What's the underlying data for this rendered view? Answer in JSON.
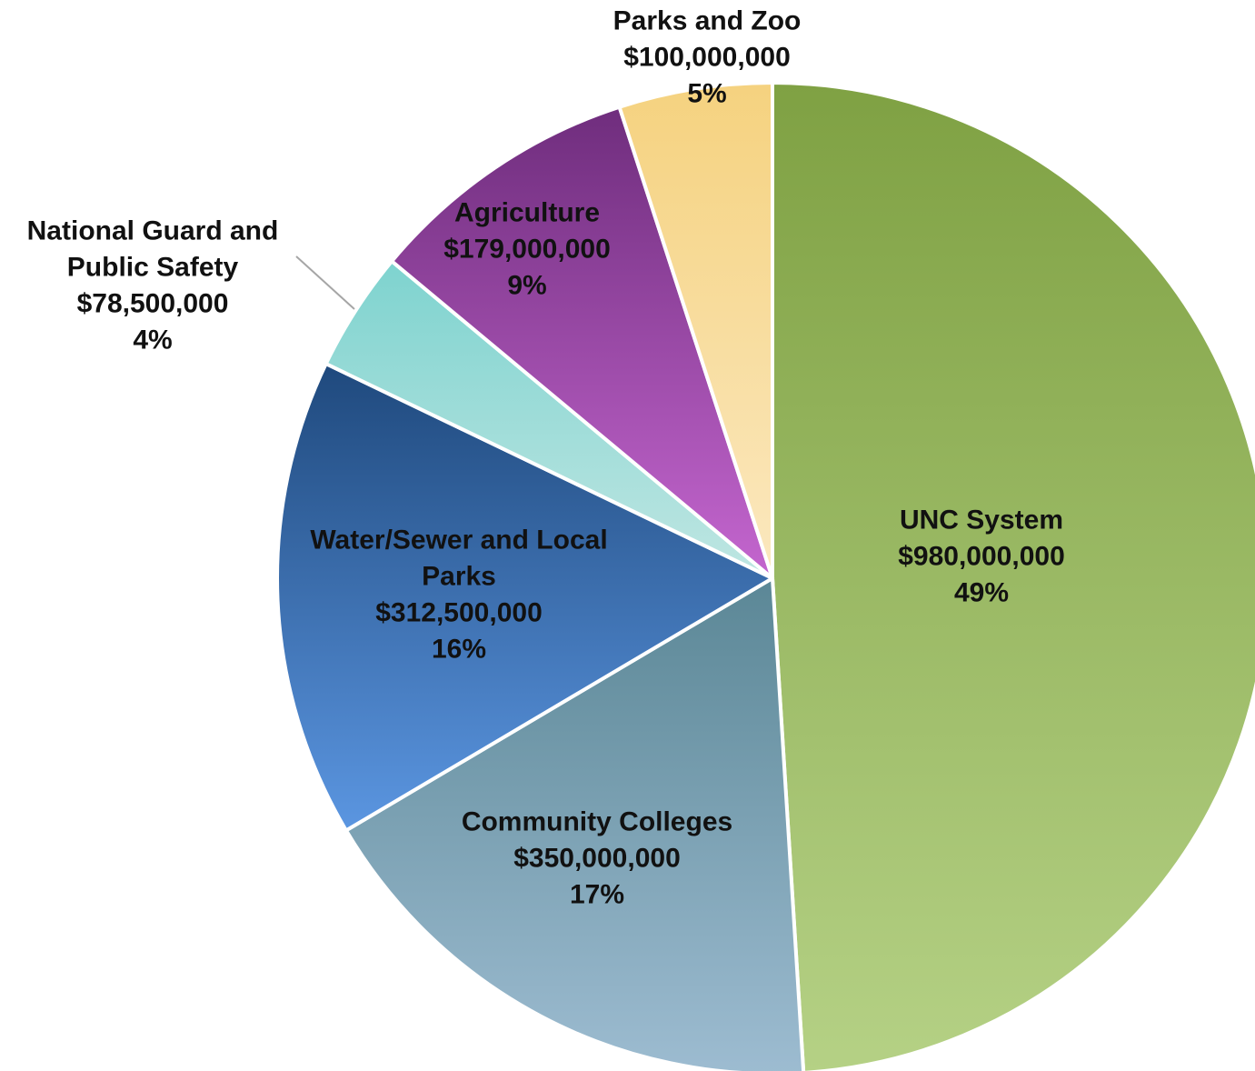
{
  "chart_data": {
    "type": "pie",
    "start_angle_deg": 0,
    "direction": "clockwise",
    "slices": [
      {
        "key": "unc",
        "label_lines": [
          "UNC System"
        ],
        "value": 980000000,
        "value_text": "$980,000,000",
        "percent_text": "49%",
        "color_top": "#7fa143",
        "color_bottom": "#b5d185"
      },
      {
        "key": "cc",
        "label_lines": [
          "Community Colleges"
        ],
        "value": 350000000,
        "value_text": "$350,000,000",
        "percent_text": "17%",
        "color_top": "#5b8796",
        "color_bottom": "#9dbcd1"
      },
      {
        "key": "water",
        "label_lines": [
          "Water/Sewer and Local",
          "Parks"
        ],
        "value": 312500000,
        "value_text": "$312,500,000",
        "percent_text": "16%",
        "color_top": "#1f497d",
        "color_bottom": "#5b96e1"
      },
      {
        "key": "guard",
        "label_lines": [
          "National Guard and",
          "Public Safety"
        ],
        "value": 78500000,
        "value_text": "$78,500,000",
        "percent_text": "4%",
        "color_top": "#7ed3cf",
        "color_bottom": "#bfe6e2"
      },
      {
        "key": "ag",
        "label_lines": [
          "Agriculture"
        ],
        "value": 179000000,
        "value_text": "$179,000,000",
        "percent_text": "9%",
        "color_top": "#6f2d7d",
        "color_bottom": "#c466cf"
      },
      {
        "key": "parks",
        "label_lines": [
          "Parks and Zoo"
        ],
        "value": 100000000,
        "value_text": "$100,000,000",
        "percent_text": "5%",
        "color_top": "#f5d27f",
        "color_bottom": "#fbe8bf"
      }
    ]
  }
}
